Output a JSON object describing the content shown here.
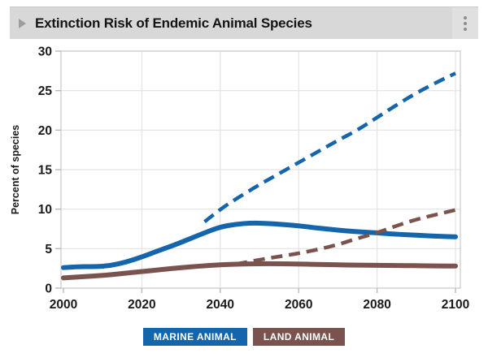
{
  "header": {
    "title": "Extinction Risk of Endemic Animal Species",
    "expand_icon": "chevron-right-icon",
    "menu_icon": "kebab-menu-icon"
  },
  "colors": {
    "marine": "#1565ad",
    "land": "#7b534e",
    "header_bg": "#d8d8d8",
    "grid": "#e3e3e3",
    "frame": "#cfcfcf",
    "label_text": "#1a1a1a"
  },
  "legend": {
    "items": [
      {
        "label": "MARINE ANIMAL",
        "color": "#1565ad"
      },
      {
        "label": "LAND ANIMAL",
        "color": "#7b534e"
      }
    ]
  },
  "chart_data": {
    "type": "line",
    "title": "Extinction Risk of Endemic Animal Species",
    "xlabel": "",
    "ylabel": "Percent of species",
    "xlim": [
      2000,
      2100
    ],
    "ylim": [
      0,
      30
    ],
    "x_ticks": [
      2000,
      2020,
      2040,
      2060,
      2080,
      2100
    ],
    "y_ticks": [
      0,
      5,
      10,
      15,
      20,
      25,
      30
    ],
    "grid": true,
    "legend_position": "bottom",
    "series": [
      {
        "name": "MARINE ANIMAL (observed/solid)",
        "color": "#1565ad",
        "style": "solid",
        "points": [
          [
            2000,
            2.6
          ],
          [
            2004,
            2.75
          ],
          [
            2008,
            2.7
          ],
          [
            2012,
            2.85
          ],
          [
            2016,
            3.3
          ],
          [
            2020,
            3.95
          ],
          [
            2024,
            4.7
          ],
          [
            2028,
            5.4
          ],
          [
            2032,
            6.2
          ],
          [
            2036,
            7.0
          ],
          [
            2040,
            7.75
          ],
          [
            2044,
            8.1
          ],
          [
            2048,
            8.25
          ],
          [
            2052,
            8.2
          ],
          [
            2056,
            8.05
          ],
          [
            2060,
            7.9
          ],
          [
            2064,
            7.65
          ],
          [
            2068,
            7.45
          ],
          [
            2072,
            7.25
          ],
          [
            2076,
            7.1
          ],
          [
            2080,
            7.0
          ],
          [
            2084,
            6.85
          ],
          [
            2088,
            6.75
          ],
          [
            2092,
            6.65
          ],
          [
            2096,
            6.55
          ],
          [
            2100,
            6.5
          ]
        ]
      },
      {
        "name": "MARINE ANIMAL (projected/dashed)",
        "color": "#1565ad",
        "style": "dashed",
        "points": [
          [
            2036,
            8.4
          ],
          [
            2040,
            10.0
          ],
          [
            2045,
            11.6
          ],
          [
            2050,
            13.1
          ],
          [
            2055,
            14.5
          ],
          [
            2060,
            15.9
          ],
          [
            2065,
            17.3
          ],
          [
            2070,
            18.7
          ],
          [
            2075,
            20.0
          ],
          [
            2080,
            21.6
          ],
          [
            2085,
            23.2
          ],
          [
            2090,
            24.7
          ],
          [
            2095,
            26.0
          ],
          [
            2100,
            27.2
          ]
        ]
      },
      {
        "name": "LAND ANIMAL (observed/solid)",
        "color": "#7b534e",
        "style": "solid",
        "points": [
          [
            2000,
            1.3
          ],
          [
            2005,
            1.45
          ],
          [
            2010,
            1.6
          ],
          [
            2015,
            1.85
          ],
          [
            2020,
            2.1
          ],
          [
            2025,
            2.35
          ],
          [
            2030,
            2.6
          ],
          [
            2035,
            2.8
          ],
          [
            2040,
            2.95
          ],
          [
            2045,
            3.05
          ],
          [
            2050,
            3.1
          ],
          [
            2055,
            3.1
          ],
          [
            2060,
            3.05
          ],
          [
            2065,
            3.0
          ],
          [
            2070,
            2.95
          ],
          [
            2075,
            2.9
          ],
          [
            2080,
            2.9
          ],
          [
            2085,
            2.85
          ],
          [
            2090,
            2.85
          ],
          [
            2095,
            2.8
          ],
          [
            2100,
            2.8
          ]
        ]
      },
      {
        "name": "LAND ANIMAL (projected/dashed)",
        "color": "#7b534e",
        "style": "dashed",
        "points": [
          [
            2044,
            3.05
          ],
          [
            2050,
            3.6
          ],
          [
            2055,
            4.0
          ],
          [
            2060,
            4.4
          ],
          [
            2065,
            4.9
          ],
          [
            2070,
            5.5
          ],
          [
            2075,
            6.3
          ],
          [
            2080,
            7.0
          ],
          [
            2085,
            7.9
          ],
          [
            2090,
            8.7
          ],
          [
            2095,
            9.3
          ],
          [
            2100,
            9.9
          ]
        ]
      }
    ]
  }
}
